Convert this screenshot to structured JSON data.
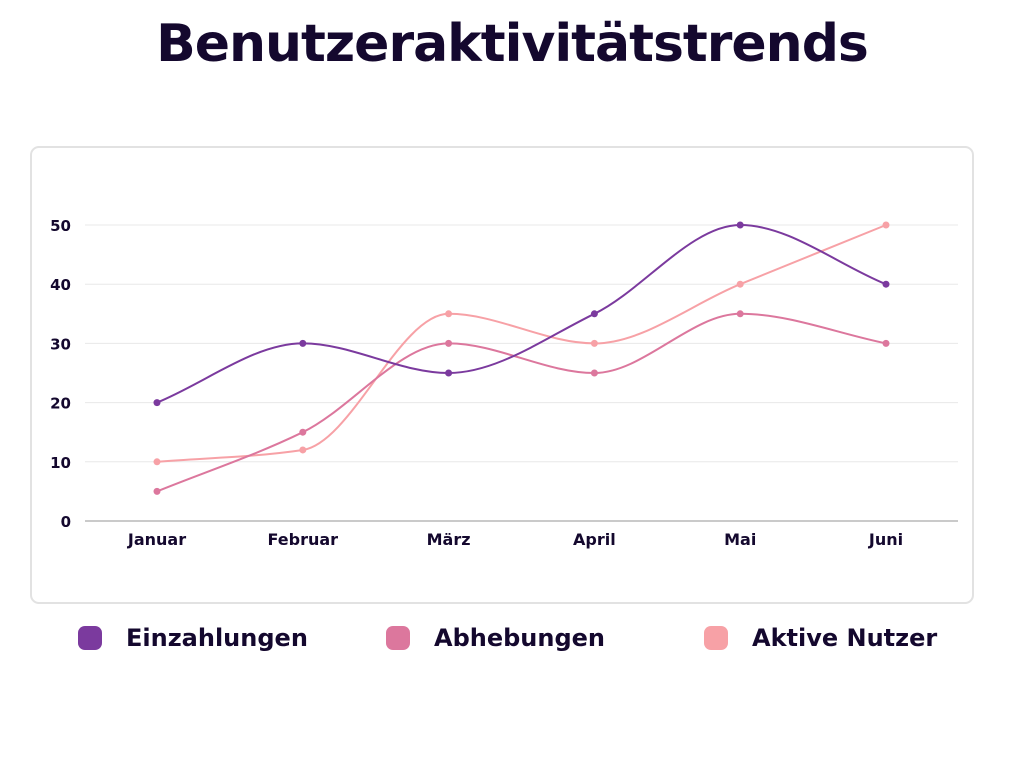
{
  "page": {
    "title": "Benutzeraktivitätstrends"
  },
  "colors": {
    "Einzahlungen": "#7b3a9e",
    "Abhebungen": "#dc779d",
    "Aktive Nutzer": "#f7a1a6",
    "grid": "#e8e8e8",
    "axis": "#b8b8b8",
    "text": "#14082e"
  },
  "chart_data": {
    "type": "line",
    "title": "Benutzeraktivitätstrends",
    "xlabel": "",
    "ylabel": "",
    "categories": [
      "Januar",
      "Februar",
      "März",
      "April",
      "Mai",
      "Juni"
    ],
    "ylim": [
      0,
      50
    ],
    "yticks": [
      "0",
      "10",
      "20",
      "30",
      "40",
      "50"
    ],
    "grid": true,
    "legend_position": "bottom",
    "series": [
      {
        "name": "Einzahlungen",
        "values": [
          20,
          30,
          25,
          35,
          50,
          40
        ]
      },
      {
        "name": "Abhebungen",
        "values": [
          5,
          15,
          30,
          25,
          35,
          30
        ]
      },
      {
        "name": "Aktive Nutzer",
        "values": [
          10,
          12,
          35,
          30,
          40,
          50
        ]
      }
    ]
  }
}
